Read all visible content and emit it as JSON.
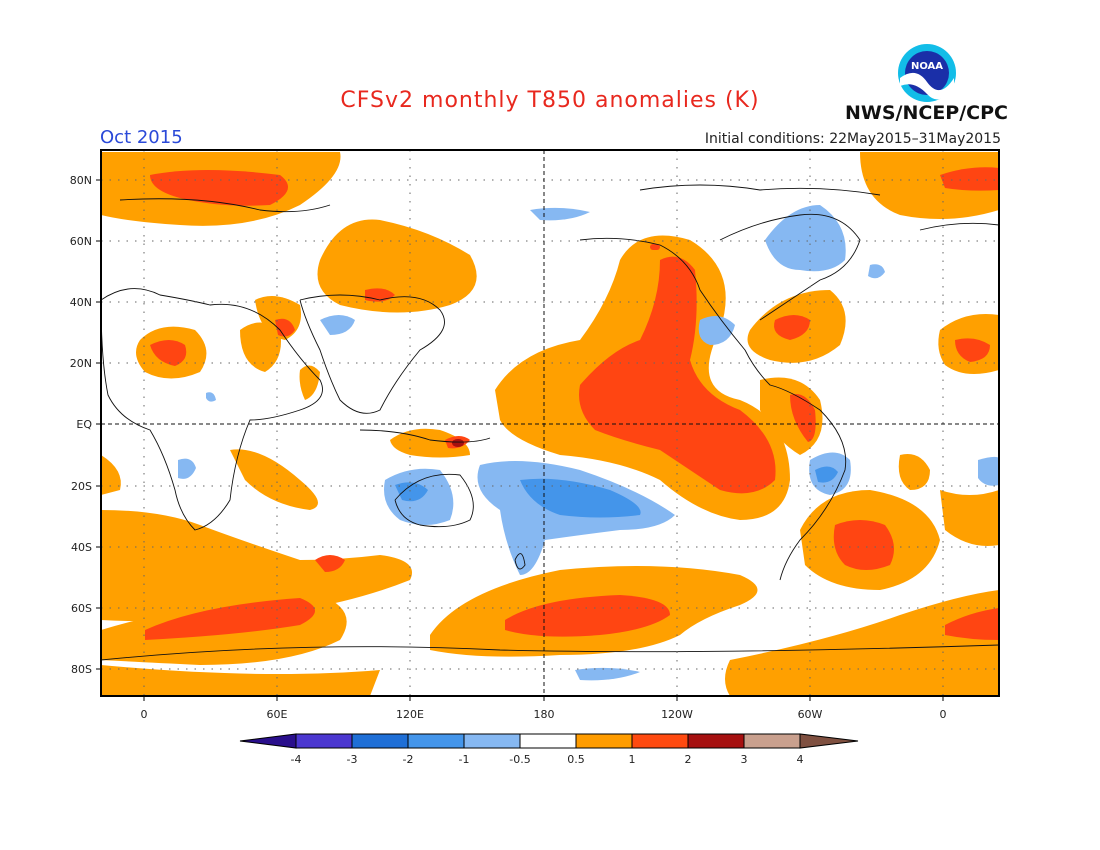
{
  "header": {
    "title": "CFSv2 monthly T850 anomalies (K)",
    "month": "Oct 2015",
    "initial_conditions": "Initial conditions: 22May2015–31May2015",
    "agency": "NWS/NCEP/CPC",
    "logo_text": "NOAA"
  },
  "map": {
    "lat_ticks": [
      "80N",
      "60N",
      "40N",
      "20N",
      "EQ",
      "20S",
      "40S",
      "60S",
      "80S"
    ],
    "lon_ticks": [
      "0",
      "60E",
      "120E",
      "180",
      "120W",
      "60W",
      "0"
    ]
  },
  "colorbar": {
    "labels": [
      "-4",
      "-3",
      "-2",
      "-1",
      "-0.5",
      "0.5",
      "1",
      "2",
      "3",
      "4"
    ],
    "colors": [
      "#2a0f8c",
      "#4b37d0",
      "#1f6fd6",
      "#4495ea",
      "#86b8f2",
      "#ffffff",
      "#ff9c00",
      "#ff4a10",
      "#a61010",
      "#c9a08e",
      "#7f5040"
    ]
  },
  "colors": {
    "title": "#e8281e",
    "month": "#2a49d8",
    "warm_1": "#ffa000",
    "warm_2": "#ff4512",
    "warm_3": "#a61010",
    "cool_1": "#86b8f2",
    "cool_2": "#4495ea"
  }
}
